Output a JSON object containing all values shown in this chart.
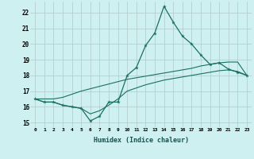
{
  "title": "",
  "xlabel": "Humidex (Indice chaleur)",
  "ylabel": "",
  "bg_color": "#cff0f0",
  "grid_color": "#b0c8c8",
  "line_color": "#1a7060",
  "xlim": [
    -0.5,
    23.5
  ],
  "ylim": [
    14.7,
    22.7
  ],
  "xticks": [
    0,
    1,
    2,
    3,
    4,
    5,
    6,
    7,
    8,
    9,
    10,
    11,
    12,
    13,
    14,
    15,
    16,
    17,
    18,
    19,
    20,
    21,
    22,
    23
  ],
  "yticks": [
    15,
    16,
    17,
    18,
    19,
    20,
    21,
    22
  ],
  "series_main": [
    16.5,
    16.3,
    16.3,
    16.1,
    16.0,
    15.9,
    15.1,
    15.4,
    16.3,
    16.3,
    18.0,
    18.5,
    19.9,
    20.7,
    22.4,
    21.4,
    20.5,
    20.0,
    19.3,
    18.7,
    18.8,
    18.4,
    18.2,
    18.0
  ],
  "series_upper": [
    16.5,
    16.5,
    16.5,
    16.6,
    16.8,
    17.0,
    17.15,
    17.3,
    17.45,
    17.6,
    17.75,
    17.85,
    17.95,
    18.05,
    18.15,
    18.25,
    18.35,
    18.45,
    18.6,
    18.7,
    18.8,
    18.85,
    18.85,
    18.0
  ],
  "series_lower": [
    16.5,
    16.3,
    16.3,
    16.1,
    16.0,
    15.9,
    15.55,
    15.75,
    16.1,
    16.5,
    17.0,
    17.2,
    17.4,
    17.55,
    17.7,
    17.8,
    17.9,
    18.0,
    18.1,
    18.2,
    18.3,
    18.35,
    18.25,
    18.0
  ]
}
